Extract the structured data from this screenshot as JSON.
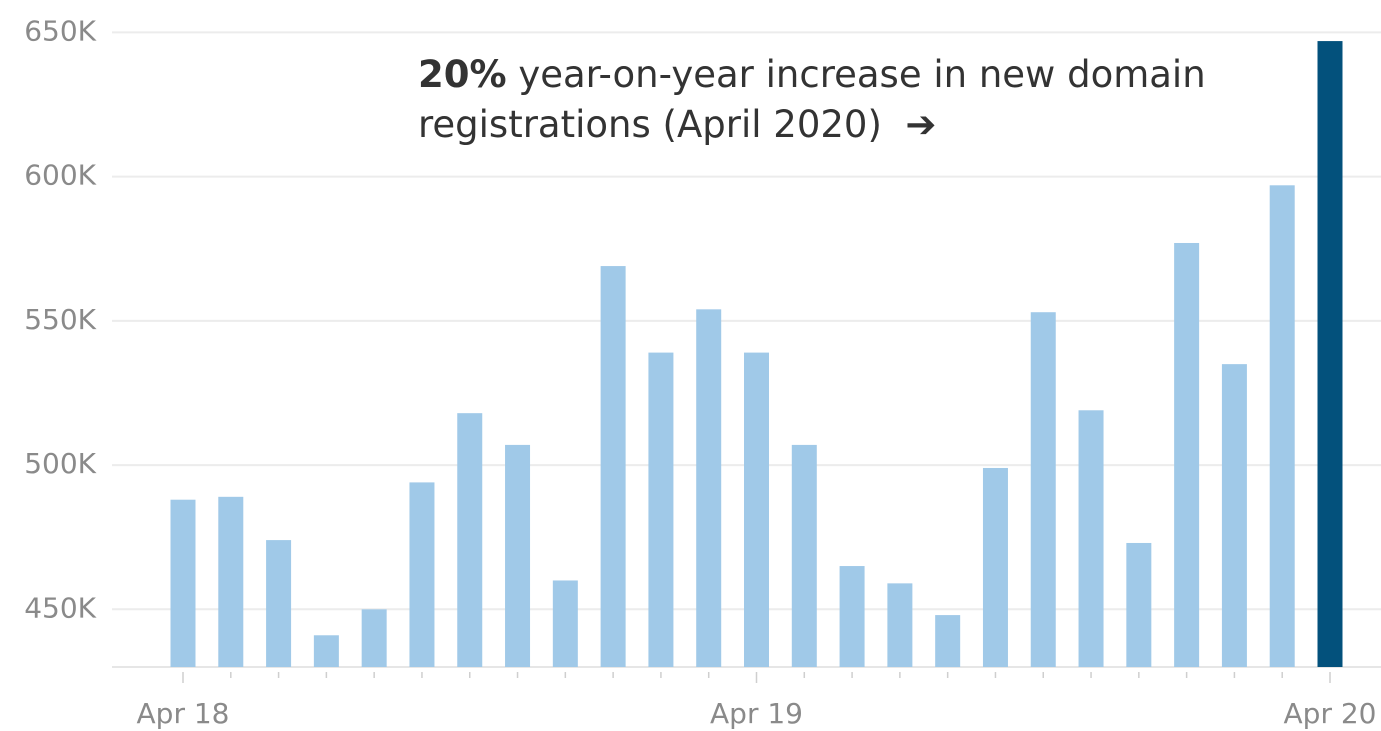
{
  "chart_data": {
    "type": "bar",
    "annotation": {
      "emphasis": "20%",
      "text": "year-on-year increase in new domain registrations (April 2020)",
      "arrow": "➔"
    },
    "categories": [
      "Apr 18",
      null,
      null,
      null,
      null,
      null,
      null,
      null,
      null,
      null,
      null,
      null,
      "Apr 19",
      null,
      null,
      null,
      null,
      null,
      null,
      null,
      null,
      null,
      null,
      null,
      "Apr 20"
    ],
    "values": [
      488000,
      489000,
      474000,
      441000,
      450000,
      494000,
      518000,
      507000,
      460000,
      569000,
      539000,
      554000,
      539000,
      507000,
      465000,
      459000,
      448000,
      499000,
      553000,
      519000,
      473000,
      577000,
      535000,
      597000,
      647000
    ],
    "colors": [
      "#a0c9e8",
      "#a0c9e8",
      "#a0c9e8",
      "#a0c9e8",
      "#a0c9e8",
      "#a0c9e8",
      "#a0c9e8",
      "#a0c9e8",
      "#a0c9e8",
      "#a0c9e8",
      "#a0c9e8",
      "#a0c9e8",
      "#a0c9e8",
      "#a0c9e8",
      "#a0c9e8",
      "#a0c9e8",
      "#a0c9e8",
      "#a0c9e8",
      "#a0c9e8",
      "#a0c9e8",
      "#a0c9e8",
      "#a0c9e8",
      "#a0c9e8",
      "#a0c9e8",
      "#03517c"
    ],
    "ylim": [
      430000,
      655000
    ],
    "yticks": [
      {
        "value": 450000,
        "label": "450K"
      },
      {
        "value": 500000,
        "label": "500K"
      },
      {
        "value": 550000,
        "label": "550K"
      },
      {
        "value": 600000,
        "label": "600K"
      },
      {
        "value": 650000,
        "label": "650K"
      }
    ],
    "grid": true
  }
}
